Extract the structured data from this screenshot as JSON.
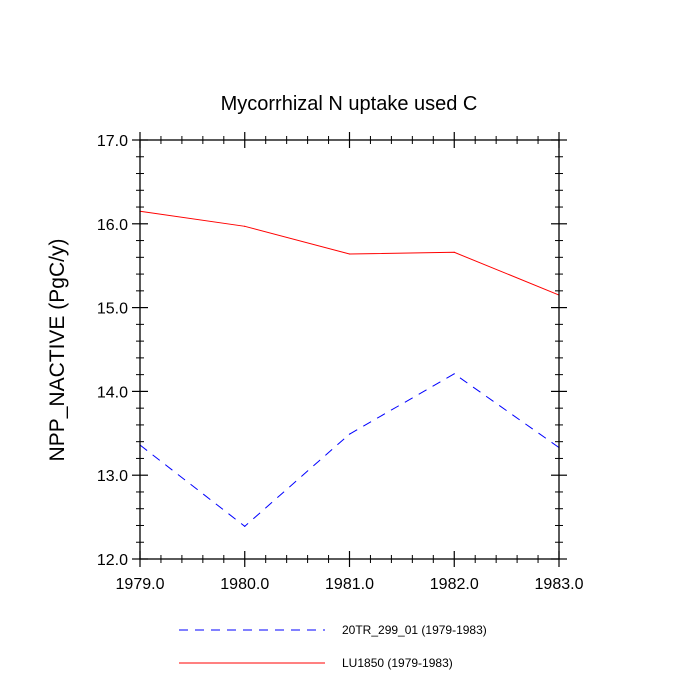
{
  "chart_data": {
    "type": "line",
    "title": "Mycorrhizal N uptake used C",
    "xlabel": "",
    "ylabel": "NPP_NACTIVE  (PgC/y)",
    "x": [
      1979,
      1980,
      1981,
      1982,
      1983
    ],
    "xlim": [
      1979,
      1983
    ],
    "ylim": [
      12,
      17
    ],
    "x_ticks": [
      1979,
      1980,
      1981,
      1982,
      1983
    ],
    "x_tick_labels": [
      "1979.0",
      "1980.0",
      "1981.0",
      "1982.0",
      "1983.0"
    ],
    "y_ticks": [
      12,
      13,
      14,
      15,
      16,
      17
    ],
    "y_tick_labels": [
      "12.0",
      "13.0",
      "14.0",
      "15.0",
      "16.0",
      "17.0"
    ],
    "grid": false,
    "legend_position": "bottom",
    "series": [
      {
        "name": "20TR_299_01 (1979-1983)",
        "values": [
          13.36,
          12.39,
          13.49,
          14.21,
          13.33
        ],
        "color": "#0000ff",
        "line_style": "dashed"
      },
      {
        "name": "LU1850 (1979-1983)",
        "values": [
          16.15,
          15.97,
          15.64,
          15.66,
          15.15
        ],
        "color": "#ff0000",
        "line_style": "solid"
      }
    ]
  }
}
